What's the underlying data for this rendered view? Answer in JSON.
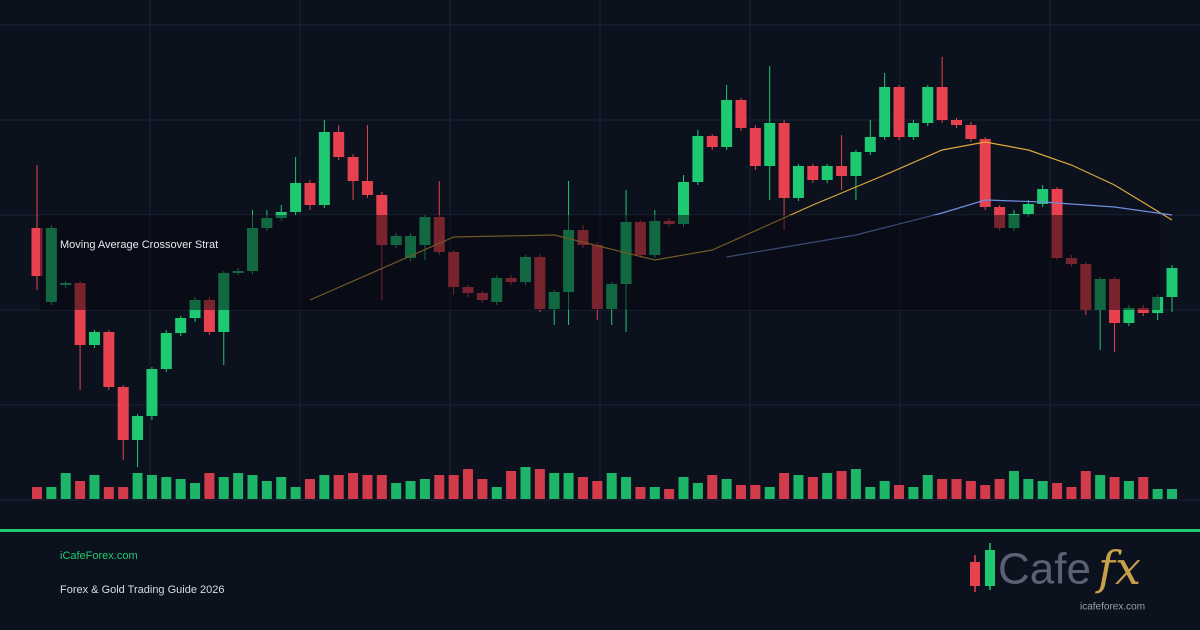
{
  "chart_data": {
    "type": "candlestick",
    "annotation": "Moving Average Crossover Strat",
    "ylim": [
      0,
      500
    ],
    "xlim": [
      0,
      79
    ],
    "up_color": "#1fc971",
    "down_color": "#e8414f",
    "open": [
      272,
      198,
      215,
      217,
      155,
      168,
      113,
      60,
      84,
      131,
      167,
      182,
      200,
      168,
      227,
      229,
      272,
      282,
      288,
      317,
      295,
      368,
      343,
      319,
      305,
      255,
      242,
      255,
      283,
      248,
      213,
      207,
      198,
      222,
      218,
      243,
      191,
      208,
      270,
      255,
      191,
      216,
      278,
      245,
      279,
      276,
      318,
      364,
      353,
      400,
      372,
      334,
      377,
      302,
      334,
      320,
      334,
      324,
      348,
      363,
      413,
      363,
      377,
      413,
      380,
      375,
      361,
      293,
      272,
      286,
      296,
      311,
      242,
      236,
      190,
      221,
      177,
      192,
      187,
      203
    ],
    "high": [
      335,
      275,
      219,
      219,
      170,
      170,
      115,
      86,
      133,
      170,
      184,
      203,
      203,
      229,
      232,
      290,
      290,
      295,
      343,
      320,
      380,
      375,
      346,
      375,
      308,
      267,
      267,
      285,
      319,
      250,
      215,
      209,
      225,
      225,
      245,
      246,
      210,
      319,
      275,
      258,
      218,
      310,
      280,
      290,
      282,
      325,
      370,
      366,
      415,
      402,
      375,
      434,
      380,
      336,
      336,
      336,
      365,
      350,
      380,
      427,
      415,
      380,
      415,
      443,
      382,
      378,
      363,
      295,
      290,
      300,
      315,
      313,
      245,
      238,
      223,
      223,
      195,
      195,
      205,
      235
    ],
    "low": [
      210,
      195,
      212,
      110,
      152,
      110,
      40,
      33,
      80,
      128,
      164,
      178,
      165,
      135,
      225,
      226,
      269,
      279,
      285,
      290,
      292,
      340,
      300,
      302,
      200,
      252,
      239,
      240,
      245,
      205,
      203,
      197,
      195,
      215,
      215,
      188,
      175,
      175,
      252,
      180,
      175,
      168,
      242,
      242,
      273,
      273,
      315,
      350,
      350,
      369,
      330,
      300,
      270,
      299,
      317,
      317,
      310,
      300,
      345,
      360,
      360,
      360,
      374,
      377,
      372,
      358,
      290,
      269,
      269,
      283,
      293,
      240,
      233,
      185,
      150,
      148,
      174,
      184,
      180,
      188
    ],
    "close": [
      224,
      272,
      217,
      155,
      168,
      113,
      60,
      84,
      131,
      167,
      182,
      200,
      168,
      227,
      229,
      272,
      282,
      288,
      317,
      295,
      368,
      343,
      319,
      305,
      255,
      264,
      264,
      283,
      248,
      213,
      207,
      200,
      222,
      218,
      243,
      191,
      208,
      270,
      255,
      191,
      216,
      278,
      245,
      279,
      276,
      318,
      364,
      353,
      400,
      372,
      334,
      377,
      302,
      334,
      320,
      334,
      324,
      348,
      363,
      413,
      363,
      377,
      413,
      380,
      375,
      361,
      293,
      272,
      286,
      296,
      311,
      242,
      236,
      190,
      221,
      177,
      192,
      187,
      203,
      232
    ],
    "volume": [
      12,
      12,
      26,
      18,
      24,
      12,
      12,
      26,
      24,
      22,
      20,
      16,
      26,
      22,
      26,
      24,
      18,
      22,
      12,
      20,
      24,
      24,
      26,
      24,
      24,
      16,
      18,
      20,
      24,
      24,
      30,
      20,
      12,
      28,
      32,
      30,
      26,
      26,
      22,
      18,
      26,
      22,
      12,
      12,
      10,
      22,
      16,
      24,
      20,
      14,
      14,
      12,
      26,
      24,
      22,
      26,
      28,
      30,
      12,
      18,
      14,
      12,
      24,
      20,
      20,
      18,
      14,
      20,
      28,
      20,
      18,
      16,
      12,
      28,
      24,
      22,
      18,
      22,
      10,
      10
    ],
    "volume_lim": [
      0,
      100
    ],
    "moving_averages": [
      {
        "color": "#e0a83a",
        "x": [
          19,
          29,
          36,
          43,
          47,
          54,
          59,
          63,
          66,
          69,
          72,
          75,
          79
        ],
        "y": [
          200,
          263,
          265,
          240,
          250,
          295,
          325,
          350,
          358,
          350,
          335,
          315,
          280
        ]
      },
      {
        "color": "#6f8fe0",
        "x": [
          48,
          57,
          63,
          66,
          70,
          75,
          79
        ],
        "y": [
          243,
          265,
          287,
          300,
          298,
          293,
          285
        ]
      }
    ]
  },
  "footer": {
    "site": "iCafeForex.com",
    "subtitle": "Forex & Gold Trading Guide 2026"
  },
  "logo": {
    "text": "Cafe",
    "fx": "fx",
    "url": "icafeforex.com"
  }
}
